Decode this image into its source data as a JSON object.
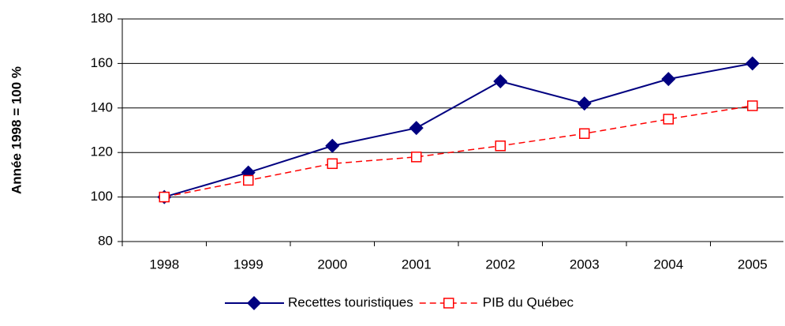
{
  "chart_data": {
    "type": "line",
    "ylabel": "Année 1998 = 100 %",
    "categories": [
      "1998",
      "1999",
      "2000",
      "2001",
      "2002",
      "2003",
      "2004",
      "2005"
    ],
    "series": [
      {
        "name": "Recettes touristiques",
        "color": "#000080",
        "marker": "diamond",
        "dash": false,
        "values": [
          100,
          111,
          123,
          131,
          152,
          142,
          153,
          160
        ]
      },
      {
        "name": "PIB du Québec",
        "color": "#ff0000",
        "marker": "square",
        "dash": true,
        "values": [
          100,
          107.5,
          115,
          118,
          123,
          128.5,
          135,
          141
        ]
      }
    ],
    "ylim": [
      80,
      180
    ],
    "yticks": [
      80,
      100,
      120,
      140,
      160,
      180
    ],
    "grid": true,
    "legend": "bottom"
  }
}
